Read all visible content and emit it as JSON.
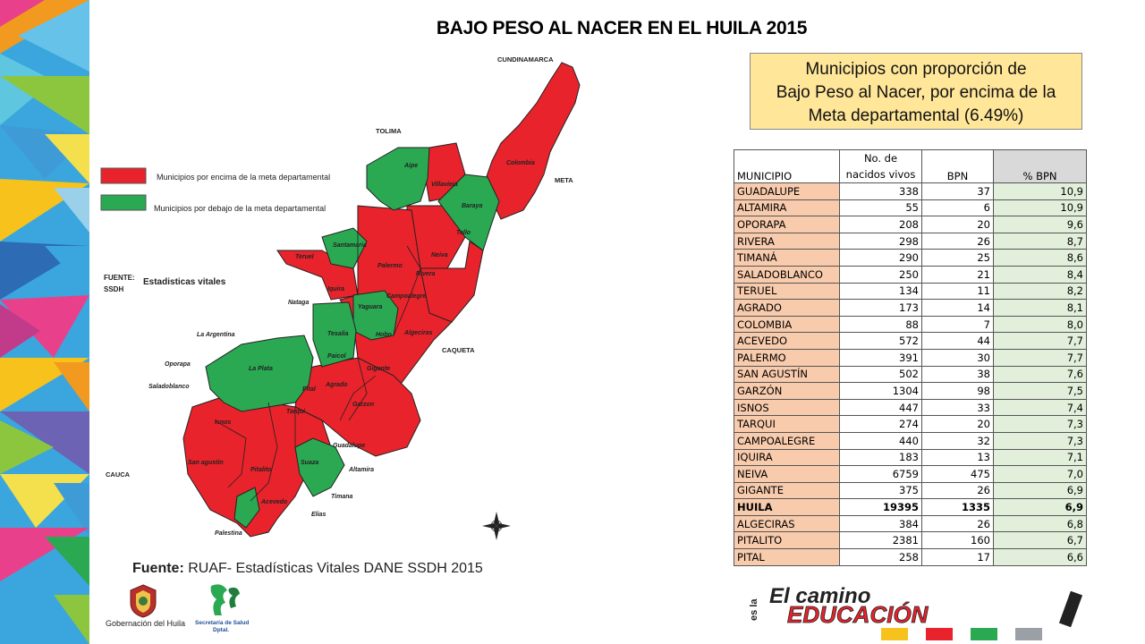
{
  "title": "BAJO PESO AL NACER EN EL HUILA 2015",
  "box": {
    "line1": "Municipios con proporción de",
    "line2": "Bajo Peso al Nacer, por encima de la",
    "line3": "Meta departamental (6.49%)"
  },
  "map": {
    "legend_above": "Municipios por encima de la meta departamental",
    "legend_below": "Municipios por debajo de la meta departamental",
    "source_label_1": "FUENTE:",
    "source_label_2": "SSDH",
    "source_name": "Estadisticas vitales",
    "neighbors": {
      "cundinamarca": "CUNDINAMARCA",
      "tolima": "TOLIMA",
      "meta": "META",
      "caqueta": "CAQUETA",
      "cauca": "CAUCA"
    },
    "municipalities": {
      "colombia": "Colombia",
      "aipe": "Aipe",
      "villavieja": "Villavieja",
      "baraya": "Baraya",
      "tello": "Tello",
      "santamaria": "Santamaria",
      "teruel": "Teruel",
      "palermo": "Palermo",
      "neiva": "Neiva",
      "rivera": "Rivera",
      "iquira": "Iquira",
      "campoalegre": "Campoalegre",
      "yaguara": "Yaguara",
      "nataga": "Nataga",
      "tesalia": "Tesalia",
      "hobo": "Hobo",
      "algeciras": "Algeciras",
      "la_argentina": "La Argentina",
      "la_plata": "La Plata",
      "paicol": "Paicol",
      "gigante": "Gigante",
      "oporapa": "Oporapa",
      "saladoblanco": "Saladoblanco",
      "pital": "Pital",
      "agrado": "Agrado",
      "garzon": "Garzon",
      "isnos": "Isnos",
      "tarqui": "Tarqui",
      "guadalupe": "Guadalupe",
      "san_agustin": "San agustin",
      "pitalito": "Pitalito",
      "suaza": "Suaza",
      "altamira": "Altamira",
      "timana": "Timana",
      "acevedo": "Acevedo",
      "elias": "Elias",
      "palestina": "Palestina"
    }
  },
  "fuente": {
    "label": "Fuente:",
    "text": " RUAF- Estadísticas Vitales DANE SSDH 2015"
  },
  "table": {
    "headers": {
      "municipio": "MUNICIPIO",
      "nacidos_1": "No. de",
      "nacidos_2": "nacidos vivos",
      "bpn": "BPN",
      "pct": "% BPN"
    },
    "rows": [
      {
        "municipio": "GUADALUPE",
        "nacidos": "338",
        "bpn": "37",
        "pct": "10,9"
      },
      {
        "municipio": "ALTAMIRA",
        "nacidos": "55",
        "bpn": "6",
        "pct": "10,9"
      },
      {
        "municipio": "OPORAPA",
        "nacidos": "208",
        "bpn": "20",
        "pct": "9,6"
      },
      {
        "municipio": "RIVERA",
        "nacidos": "298",
        "bpn": "26",
        "pct": "8,7"
      },
      {
        "municipio": "TIMANÁ",
        "nacidos": "290",
        "bpn": "25",
        "pct": "8,6"
      },
      {
        "municipio": "SALADOBLANCO",
        "nacidos": "250",
        "bpn": "21",
        "pct": "8,4"
      },
      {
        "municipio": "TERUEL",
        "nacidos": "134",
        "bpn": "11",
        "pct": "8,2"
      },
      {
        "municipio": "AGRADO",
        "nacidos": "173",
        "bpn": "14",
        "pct": "8,1"
      },
      {
        "municipio": "COLOMBIA",
        "nacidos": "88",
        "bpn": "7",
        "pct": "8,0"
      },
      {
        "municipio": "ACEVEDO",
        "nacidos": "572",
        "bpn": "44",
        "pct": "7,7"
      },
      {
        "municipio": "PALERMO",
        "nacidos": "391",
        "bpn": "30",
        "pct": "7,7"
      },
      {
        "municipio": "SAN AGUSTÍN",
        "nacidos": "502",
        "bpn": "38",
        "pct": "7,6"
      },
      {
        "municipio": "GARZÓN",
        "nacidos": "1304",
        "bpn": "98",
        "pct": "7,5"
      },
      {
        "municipio": "ISNOS",
        "nacidos": "447",
        "bpn": "33",
        "pct": "7,4"
      },
      {
        "municipio": "TARQUI",
        "nacidos": "274",
        "bpn": "20",
        "pct": "7,3"
      },
      {
        "municipio": "CAMPOALEGRE",
        "nacidos": "440",
        "bpn": "32",
        "pct": "7,3"
      },
      {
        "municipio": "IQUIRA",
        "nacidos": "183",
        "bpn": "13",
        "pct": "7,1"
      },
      {
        "municipio": "NEIVA",
        "nacidos": "6759",
        "bpn": "475",
        "pct": "7,0"
      },
      {
        "municipio": "GIGANTE",
        "nacidos": "375",
        "bpn": "26",
        "pct": "6,9"
      },
      {
        "municipio": "HUILA",
        "nacidos": "19395",
        "bpn": "1335",
        "pct": "6,9",
        "bold": true
      },
      {
        "municipio": "ALGECIRAS",
        "nacidos": "384",
        "bpn": "26",
        "pct": "6,8"
      },
      {
        "municipio": "PITALITO",
        "nacidos": "2381",
        "bpn": "160",
        "pct": "6,7"
      },
      {
        "municipio": "PITAL",
        "nacidos": "258",
        "bpn": "17",
        "pct": "6,6"
      }
    ]
  },
  "logos": {
    "gobernacion": "Gobernación del Huila",
    "secretaria_1": "Secretaría de Salud",
    "secretaria_2": "Dptal.",
    "edu_1": "El camino",
    "edu_2": "es la",
    "edu_3": "EDUCACIÓN"
  },
  "colors": {
    "above": "#e8232b",
    "below": "#2aa952",
    "box": "#ffe699",
    "municipio_cell": "#f8cbad",
    "pct_cell": "#e2efda"
  }
}
